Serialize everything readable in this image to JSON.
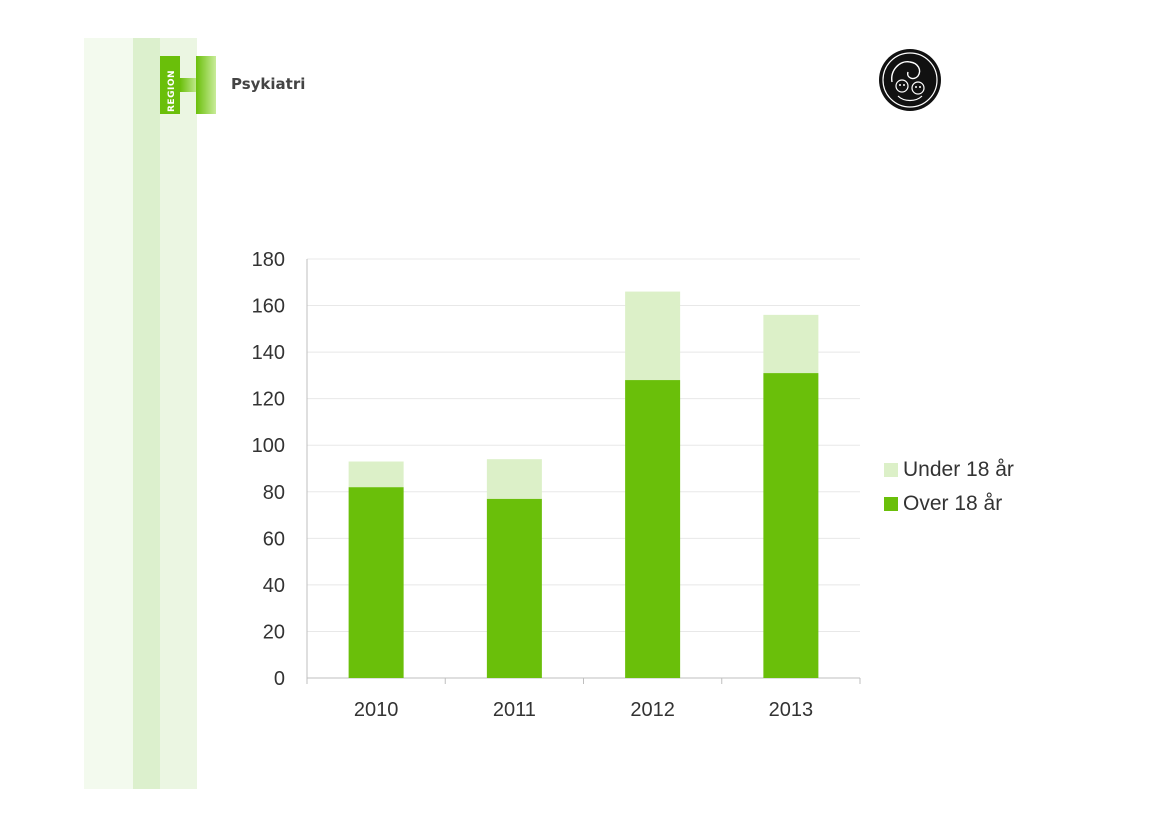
{
  "header": {
    "brand_text": "Psykiatri",
    "logo_text": "REGION",
    "logo_icon": "region-h-logo",
    "emblem_icon": "circular-emblem"
  },
  "colors": {
    "over": "#6abf0a",
    "under": "#dcf0c8",
    "grid": "#e8e8e8",
    "axis": "#bfbfbf"
  },
  "chart_data": {
    "type": "bar",
    "stacked": true,
    "categories": [
      "2010",
      "2011",
      "2012",
      "2013"
    ],
    "series": [
      {
        "name": "Over 18 år",
        "values": [
          82,
          77,
          128,
          131
        ]
      },
      {
        "name": "Under 18 år",
        "values": [
          11,
          17,
          38,
          25
        ]
      }
    ],
    "ylim": [
      0,
      180
    ],
    "yticks": [
      "0",
      "20",
      "40",
      "60",
      "80",
      "100",
      "120",
      "140",
      "160",
      "180"
    ],
    "grid": true,
    "legend": [
      {
        "label": "Under 18 år",
        "color": "#dcf0c8"
      },
      {
        "label": "Over 18 år",
        "color": "#6abf0a"
      }
    ],
    "legend_position": "right"
  }
}
